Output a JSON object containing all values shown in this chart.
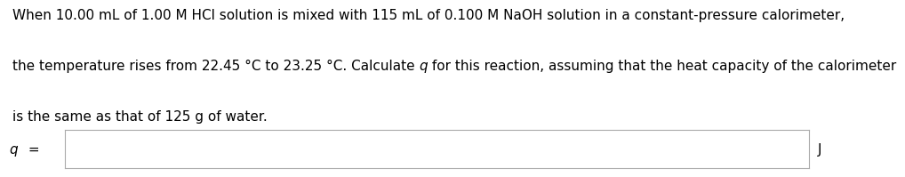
{
  "line1": "When 10.00 mL of 1.00 M HCl solution is mixed with 115 mL of 0.100 M NaOH solution in a constant-pressure calorimeter,",
  "line2_before_q": "the temperature rises from 22.45 °C to 23.25 °C. Calculate ",
  "line2_q": "q",
  "line2_after_q": " for this reaction, assuming that the heat capacity of the calorimeter",
  "line3": "is the same as that of 125 g of water.",
  "label_left": "q =",
  "label_right": "J",
  "text_color": "#000000",
  "background_color": "#ffffff",
  "box_edge_color": "#aaaaaa",
  "box_fill": "#ffffff",
  "font_size": 11.0,
  "label_font_size": 11.0
}
